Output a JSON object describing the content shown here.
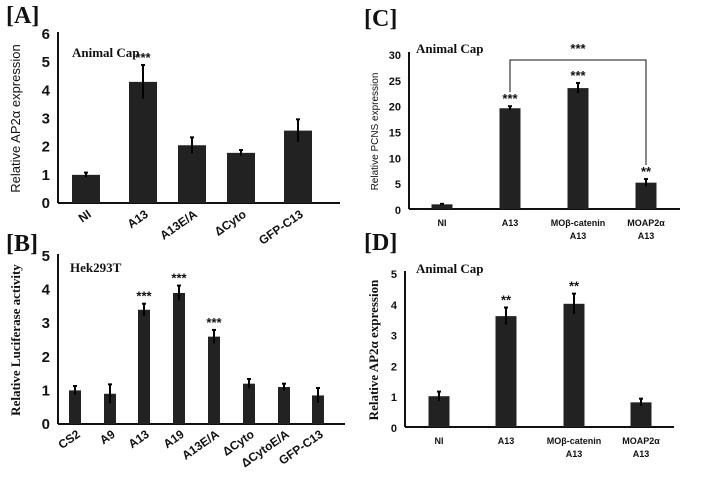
{
  "chart_data": [
    {
      "panel": "[A]",
      "type": "bar",
      "title": "Animal Cap",
      "ylabel": "Relative  AP2α expression",
      "xlabel": "",
      "ylim": [
        0,
        6
      ],
      "yticks": [
        "0",
        "1",
        "2",
        "3",
        "4",
        "5",
        "6"
      ],
      "grid": false,
      "categories": [
        "NI",
        "A13",
        "A13E/A",
        "ΔCyto",
        "GFP-C13"
      ],
      "values": [
        1.0,
        4.3,
        2.05,
        1.78,
        2.57
      ],
      "errors": [
        0.08,
        0.6,
        0.28,
        0.1,
        0.4
      ],
      "annotations": [
        "",
        "***",
        "",
        "",
        ""
      ],
      "bar_color": "#222222"
    },
    {
      "panel": "[B]",
      "type": "bar",
      "title": "Hek293T",
      "ylabel": "Relative Luciferase activity",
      "xlabel": "",
      "ylim": [
        0,
        5
      ],
      "yticks": [
        "0",
        "1",
        "2",
        "3",
        "4",
        "5"
      ],
      "grid": false,
      "categories": [
        "CS2",
        "A9",
        "A13",
        "A19",
        "A13E/A",
        "ΔCyto",
        "ΔCytoE/A",
        "GFP-C13"
      ],
      "values": [
        1.0,
        0.9,
        3.4,
        3.9,
        2.6,
        1.2,
        1.1,
        0.85
      ],
      "errors": [
        0.13,
        0.28,
        0.18,
        0.22,
        0.2,
        0.14,
        0.1,
        0.22
      ],
      "annotations": [
        "",
        "",
        "***",
        "***",
        "***",
        "",
        "",
        ""
      ],
      "bar_color": "#222222"
    },
    {
      "panel": "[C]",
      "type": "bar",
      "title": "Animal Cap",
      "ylabel": "Relative PCNS expression",
      "xlabel": "",
      "ylim": [
        0,
        30
      ],
      "yticks": [
        "0",
        "5",
        "10",
        "15",
        "20",
        "25",
        "30"
      ],
      "grid": false,
      "categories": [
        [
          "NI"
        ],
        [
          "A13"
        ],
        [
          "MOβ-catenin",
          "A13"
        ],
        [
          "MOAP2α",
          "A13"
        ]
      ],
      "values": [
        0.9,
        19.5,
        23.4,
        5.1
      ],
      "errors": [
        0.1,
        0.4,
        1.0,
        0.7
      ],
      "annotations": [
        "",
        "***",
        "***",
        "**"
      ],
      "bracket": {
        "from": 1,
        "to": 3,
        "label": "***"
      },
      "bar_color": "#222222"
    },
    {
      "panel": "[D]",
      "type": "bar",
      "title": "Animal Cap",
      "ylabel": "Relative AP2α expression",
      "xlabel": "",
      "ylim": [
        0,
        5
      ],
      "yticks": [
        "0",
        "1",
        "2",
        "3",
        "4",
        "5"
      ],
      "grid": false,
      "categories": [
        [
          "NI"
        ],
        [
          "A13"
        ],
        [
          "MOβ-catenin",
          "A13"
        ],
        [
          "MOAP2α",
          "A13"
        ]
      ],
      "values": [
        1.0,
        3.6,
        4.0,
        0.8
      ],
      "errors": [
        0.15,
        0.28,
        0.33,
        0.12
      ],
      "annotations": [
        "",
        "**",
        "**",
        ""
      ],
      "bar_color": "#222222"
    }
  ]
}
